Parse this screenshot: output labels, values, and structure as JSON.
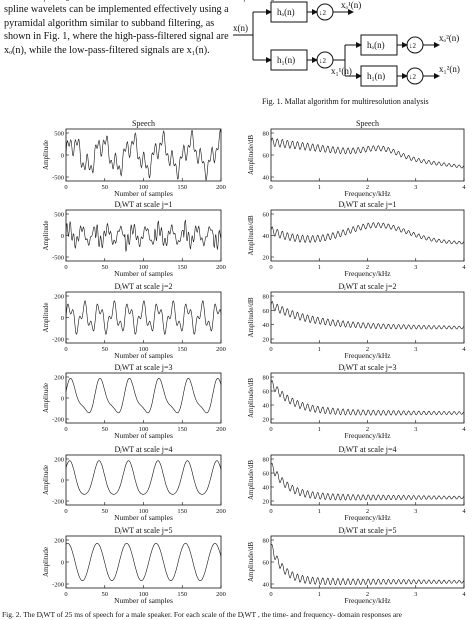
{
  "intro_lines": [
    "spline wavelets can be implemented effectively using a",
    "pyramidal algorithm similar to subband filtering, as",
    "shown in Fig. 1, where the high-pass-filtered signal are",
    "xₒ(n), while the low-pass-filtered signals are x₁(n)."
  ],
  "fig1": {
    "input_label": "x(n)",
    "blocks": [
      "hₒ(n)",
      "h₁(n)",
      "hₒ(n)",
      "h₁(n)"
    ],
    "down_label": "↓2",
    "outputs": [
      "xₒ¹(n)",
      "xₒ²(n)",
      "x₁²(n)"
    ],
    "intermediate": "x₁¹(n)",
    "caption": "Fig. 1. Mallat algorithm for multiresolution analysis"
  },
  "fig2_caption": "Fig. 2. The DⱼWT of 25 ms of speech for a male speaker. For each scale of the DⱼWT , the time- and frequency- domain responses are",
  "chart_data": [
    {
      "type": "line",
      "title": "Speech",
      "xlabel": "Number of samples",
      "ylabel": "Amplitude",
      "xlim": [
        0,
        200
      ],
      "yticks": [
        "500",
        "0",
        "-500"
      ],
      "xticks": [
        "0",
        "50",
        "100",
        "150",
        "200"
      ]
    },
    {
      "type": "line",
      "title": "Speech",
      "xlabel": "Frequency/kHz",
      "ylabel": "Amplitude/dB",
      "xlim": [
        0,
        4
      ],
      "yticks": [
        "80",
        "60",
        "40"
      ],
      "xticks": [
        "0",
        "1",
        "2",
        "3",
        "4"
      ]
    },
    {
      "type": "line",
      "title": "DⱼWT at scale j=1",
      "xlabel": "Number of samples",
      "ylabel": "Amplitude",
      "xlim": [
        0,
        200
      ],
      "yticks": [
        "500",
        "0",
        "-500"
      ],
      "xticks": [
        "0",
        "50",
        "100",
        "150",
        "200"
      ]
    },
    {
      "type": "line",
      "title": "DⱼWT at scale j=1",
      "xlabel": "Frequency/kHz",
      "ylabel": "Amplitude/dB",
      "xlim": [
        0,
        4
      ],
      "yticks": [
        "60",
        "40",
        "20"
      ],
      "xticks": [
        "0",
        "1",
        "2",
        "3",
        "4"
      ]
    },
    {
      "type": "line",
      "title": "DⱼWT at scale j=2",
      "xlabel": "Number of samples",
      "ylabel": "Amplitude",
      "xlim": [
        0,
        200
      ],
      "yticks": [
        "200",
        "0",
        "-200"
      ],
      "xticks": [
        "0",
        "50",
        "100",
        "150",
        "200"
      ]
    },
    {
      "type": "line",
      "title": "DⱼWT at scale j=2",
      "xlabel": "Frequency/kHz",
      "ylabel": "Amplitude/dB",
      "xlim": [
        0,
        4
      ],
      "yticks": [
        "80",
        "60",
        "40",
        "20"
      ],
      "xticks": [
        "0",
        "1",
        "2",
        "3",
        "4"
      ]
    },
    {
      "type": "line",
      "title": "DⱼWT at scale j=3",
      "xlabel": "Number of samples",
      "ylabel": "Amplitude",
      "xlim": [
        0,
        200
      ],
      "yticks": [
        "200",
        "0",
        "-200"
      ],
      "xticks": [
        "0",
        "50",
        "100",
        "150",
        "200"
      ]
    },
    {
      "type": "line",
      "title": "DⱼWT at scale j=3",
      "xlabel": "Frequency/kHz",
      "ylabel": "Amplitude/dB",
      "xlim": [
        0,
        4
      ],
      "yticks": [
        "80",
        "60",
        "40",
        "20"
      ],
      "xticks": [
        "0",
        "1",
        "2",
        "3",
        "4"
      ]
    },
    {
      "type": "line",
      "title": "DⱼWT at scale j=4",
      "xlabel": "Number of samples",
      "ylabel": "Amplitude",
      "xlim": [
        0,
        200
      ],
      "yticks": [
        "200",
        "0",
        "-200"
      ],
      "xticks": [
        "0",
        "50",
        "100",
        "150",
        "200"
      ]
    },
    {
      "type": "line",
      "title": "DⱼWT at scale j=4",
      "xlabel": "Frequency/kHz",
      "ylabel": "Amplitude/dB",
      "xlim": [
        0,
        4
      ],
      "yticks": [
        "80",
        "60",
        "40",
        "20"
      ],
      "xticks": [
        "0",
        "1",
        "2",
        "3",
        "4"
      ]
    },
    {
      "type": "line",
      "title": "DⱼWT at scale j=5",
      "xlabel": "Number of samples",
      "ylabel": "Amplitude",
      "xlim": [
        0,
        200
      ],
      "yticks": [
        "200",
        "0",
        "-200"
      ],
      "xticks": [
        "0",
        "50",
        "100",
        "150",
        "200"
      ]
    },
    {
      "type": "line",
      "title": "DⱼWT at scale j=5",
      "xlabel": "Frequency/kHz",
      "ylabel": "Amplitude/dB",
      "xlim": [
        0,
        4
      ],
      "yticks": [
        "80",
        "60",
        "40"
      ],
      "xticks": [
        "0",
        "1",
        "2",
        "3",
        "4"
      ]
    },
    {
      "type": "line",
      "title": "",
      "xlabel": "",
      "ylabel": "Amplitude",
      "xlim": [
        0,
        200
      ],
      "yticks": [
        "200",
        "0",
        "-200"
      ],
      "xticks": []
    },
    {
      "type": "line",
      "title": "",
      "xlabel": "",
      "ylabel": "Amplitude/dB",
      "xlim": [
        0,
        4
      ],
      "yticks": [
        "80",
        "60",
        "40"
      ],
      "xticks": []
    }
  ]
}
